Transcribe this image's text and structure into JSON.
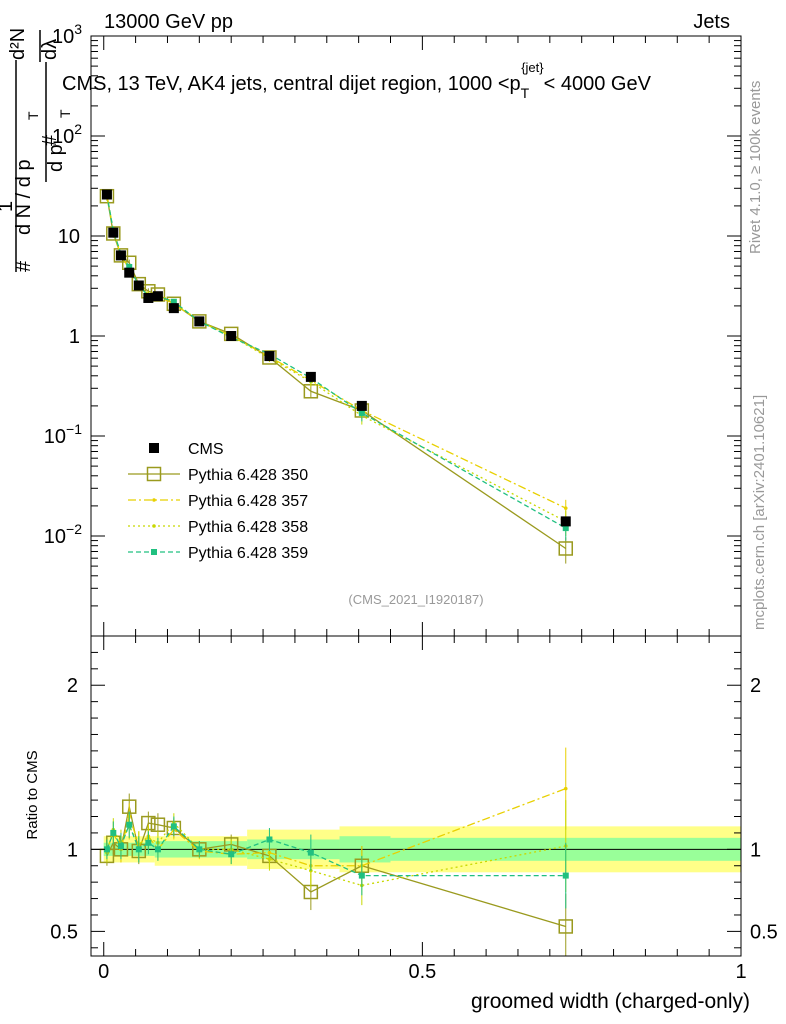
{
  "header": {
    "left": "13000 GeV pp",
    "right": "Jets"
  },
  "side_labels": {
    "rivet": "Rivet 4.1.0, ≥ 100k events",
    "mcplots": "mcplots.cern.ch [arXiv:2401.10621]"
  },
  "chart_data": [
    {
      "type": "line",
      "panel": "main",
      "title": "CMS, 13 TeV, AK4 jets, central dijet region, 1000 <p_T^{jet}< 4000 GeV",
      "title_parts": {
        "main": "CMS, 13 TeV, AK4 jets, central dijet region, 1000 <p",
        "sub": "T",
        "sup": "{jet}",
        "tail": "< 4000 GeV"
      },
      "ylabel_parts": {
        "hash": "#",
        "one": "1",
        "dN": "d N / d p",
        "T": "T",
        "d2N": "d²N",
        "dpT": "d p",
        "dl": "dλ"
      },
      "xlabel": "groomed width (charged-only)",
      "yscale": "log",
      "ylim": [
        0.001,
        1000
      ],
      "xlim": [
        -0.02,
        1.0
      ],
      "y_ticks": [
        {
          "value": 0.01,
          "base": "10",
          "exp": "−2"
        },
        {
          "value": 0.1,
          "base": "10",
          "exp": "−1"
        },
        {
          "value": 1,
          "base": "1",
          "exp": ""
        },
        {
          "value": 10,
          "base": "10",
          "exp": ""
        },
        {
          "value": 100,
          "base": "10",
          "exp": "2"
        },
        {
          "value": 1000,
          "base": "10",
          "exp": "3"
        }
      ],
      "watermark": "(CMS_2021_I1920187)",
      "x": [
        0.005,
        0.015,
        0.027,
        0.04,
        0.055,
        0.07,
        0.085,
        0.11,
        0.15,
        0.2,
        0.26,
        0.325,
        0.405,
        0.725
      ],
      "series": [
        {
          "name": "CMS",
          "color": "#000000",
          "style": "data",
          "values": [
            26,
            10.8,
            6.4,
            4.3,
            3.2,
            2.4,
            2.5,
            1.9,
            1.4,
            1.0,
            0.63,
            0.39,
            0.2,
            0.014
          ]
        },
        {
          "name": "Pythia 6.428 350",
          "color": "#9a9a1e",
          "style": "solid-open-square",
          "values": [
            25,
            10.6,
            6.4,
            5.4,
            3.3,
            2.8,
            2.6,
            2.1,
            1.4,
            1.05,
            0.61,
            0.28,
            0.18,
            0.0075
          ],
          "err": [
            2.5,
            1.0,
            0.5,
            0.4,
            0.25,
            0.2,
            0.18,
            0.14,
            0.1,
            0.07,
            0.05,
            0.04,
            0.03,
            0.0022
          ]
        },
        {
          "name": "Pythia 6.428 357",
          "color": "#e8d000",
          "style": "dashdot",
          "values": [
            26,
            11.2,
            6.3,
            4.8,
            3.3,
            2.6,
            2.5,
            2.1,
            1.4,
            1.0,
            0.62,
            0.36,
            0.18,
            0.019
          ],
          "err": [
            2.5,
            1.0,
            0.5,
            0.4,
            0.25,
            0.2,
            0.18,
            0.14,
            0.1,
            0.07,
            0.05,
            0.04,
            0.03,
            0.004
          ]
        },
        {
          "name": "Pythia 6.428 358",
          "color": "#c8d800",
          "style": "dotted",
          "values": [
            25,
            11.4,
            6.6,
            4.6,
            3.3,
            2.6,
            2.6,
            2.2,
            1.4,
            1.0,
            0.6,
            0.35,
            0.16,
            0.014
          ],
          "err": [
            2.5,
            1.0,
            0.5,
            0.4,
            0.25,
            0.2,
            0.18,
            0.14,
            0.1,
            0.07,
            0.05,
            0.04,
            0.03,
            0.004
          ]
        },
        {
          "name": "Pythia 6.428 359",
          "color": "#20c080",
          "style": "dashed-filled-square",
          "values": [
            26,
            11.3,
            6.6,
            4.9,
            3.2,
            2.5,
            2.5,
            2.2,
            1.4,
            0.97,
            0.66,
            0.38,
            0.17,
            0.012
          ],
          "err": [
            2.5,
            1.0,
            0.5,
            0.4,
            0.25,
            0.2,
            0.18,
            0.14,
            0.1,
            0.07,
            0.05,
            0.04,
            0.03,
            0.003
          ]
        }
      ]
    },
    {
      "type": "line",
      "panel": "ratio",
      "ylabel": "Ratio to CMS",
      "xlabel": "groomed width (charged-only)",
      "ylim": [
        0.35,
        2.3
      ],
      "xlim": [
        -0.02,
        1.0
      ],
      "y_ticks": [
        {
          "value": 0.5,
          "label": "0.5"
        },
        {
          "value": 1,
          "label": "1"
        },
        {
          "value": 2,
          "label": "2"
        }
      ],
      "x_ticks": [
        {
          "value": 0,
          "label": "0"
        },
        {
          "value": 0.5,
          "label": "0.5"
        },
        {
          "value": 1,
          "label": "1"
        }
      ],
      "bands": [
        {
          "x0": 0.0,
          "x1": 0.08,
          "green": [
            0.96,
            1.04
          ],
          "yellow": [
            0.92,
            1.08
          ]
        },
        {
          "x0": 0.08,
          "x1": 0.225,
          "green": [
            0.95,
            1.05
          ],
          "yellow": [
            0.9,
            1.08
          ]
        },
        {
          "x0": 0.225,
          "x1": 0.37,
          "green": [
            0.94,
            1.06
          ],
          "yellow": [
            0.88,
            1.12
          ]
        },
        {
          "x0": 0.37,
          "x1": 0.45,
          "green": [
            0.92,
            1.08
          ],
          "yellow": [
            0.86,
            1.14
          ]
        },
        {
          "x0": 0.45,
          "x1": 1.0,
          "green": [
            0.93,
            1.07
          ],
          "yellow": [
            0.86,
            1.14
          ]
        }
      ],
      "band_colors": {
        "green": "#99ff99",
        "yellow": "#ffff88"
      },
      "x": [
        0.005,
        0.015,
        0.027,
        0.04,
        0.055,
        0.07,
        0.085,
        0.11,
        0.15,
        0.2,
        0.26,
        0.325,
        0.405,
        0.725
      ],
      "series": [
        {
          "name": "Pythia 6.428 350",
          "color": "#9a9a1e",
          "style": "solid-open-square",
          "values": [
            0.96,
            1.04,
            1.0,
            1.26,
            0.99,
            1.16,
            1.15,
            1.13,
            1.0,
            1.03,
            0.96,
            0.74,
            0.9,
            0.53
          ],
          "err": [
            0.06,
            0.07,
            0.08,
            0.08,
            0.08,
            0.07,
            0.07,
            0.06,
            0.05,
            0.06,
            0.07,
            0.11,
            0.12,
            0.2
          ]
        },
        {
          "name": "Pythia 6.428 357",
          "color": "#e8d000",
          "style": "dashdot",
          "values": [
            1.0,
            1.1,
            1.0,
            1.2,
            1.03,
            1.08,
            1.0,
            1.12,
            0.99,
            0.97,
            0.98,
            0.9,
            0.9,
            1.37
          ],
          "err": [
            0.06,
            0.07,
            0.08,
            0.08,
            0.08,
            0.07,
            0.07,
            0.06,
            0.05,
            0.06,
            0.07,
            0.11,
            0.12,
            0.25
          ]
        },
        {
          "name": "Pythia 6.428 358",
          "color": "#c8d800",
          "style": "dotted",
          "values": [
            0.98,
            1.12,
            1.04,
            1.14,
            1.03,
            1.07,
            1.04,
            1.16,
            1.0,
            1.0,
            0.94,
            0.87,
            0.78,
            1.02
          ],
          "err": [
            0.06,
            0.07,
            0.08,
            0.08,
            0.08,
            0.07,
            0.07,
            0.06,
            0.05,
            0.06,
            0.07,
            0.11,
            0.12,
            0.28
          ]
        },
        {
          "name": "Pythia 6.428 359",
          "color": "#20c080",
          "style": "dashed-filled-square",
          "values": [
            1.0,
            1.1,
            1.02,
            1.15,
            1.0,
            1.04,
            1.0,
            1.14,
            1.0,
            0.97,
            1.06,
            0.98,
            0.84,
            0.84
          ],
          "err": [
            0.06,
            0.07,
            0.08,
            0.08,
            0.08,
            0.07,
            0.07,
            0.06,
            0.05,
            0.06,
            0.07,
            0.11,
            0.12,
            0.2
          ]
        }
      ]
    }
  ]
}
